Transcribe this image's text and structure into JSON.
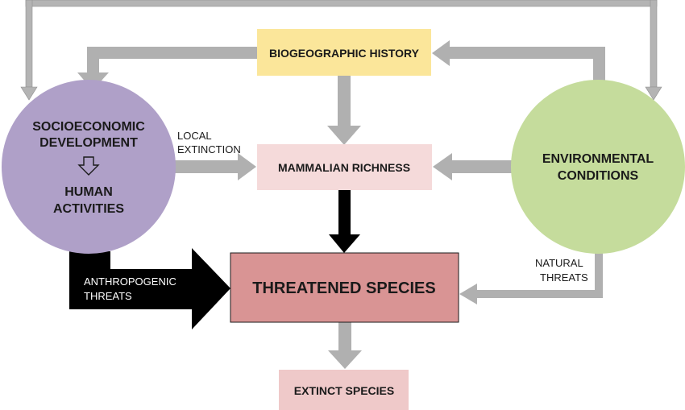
{
  "nodes": {
    "biogeographic": {
      "label": "BIOGEOGRAPHIC HISTORY",
      "color": "#FBE69A"
    },
    "mammalian": {
      "label": "MAMMALIAN RICHNESS",
      "color": "#F5DADA"
    },
    "threatened": {
      "label": "THREATENED SPECIES",
      "color": "#D99494"
    },
    "extinct": {
      "label": "EXTINCT SPECIES",
      "color": "#EFC9C9"
    },
    "socio": {
      "line1": "SOCIOECONOMIC",
      "line2": "DEVELOPMENT",
      "line3": "HUMAN",
      "line4": "ACTIVITIES",
      "color": "#AFA0C8"
    },
    "environmental": {
      "line1": "ENVIRONMENTAL",
      "line2": "CONDITIONS",
      "color": "#C5DC9C"
    }
  },
  "labels": {
    "local_extinction_1": "LOCAL",
    "local_extinction_2": "EXTINCTION",
    "anthropogenic_1": "ANTHROPOGENIC",
    "anthropogenic_2": "THREATS",
    "natural_1": "NATURAL",
    "natural_2": "THREATS"
  },
  "colors": {
    "gray_arrow": "#B0B0B0",
    "black_arrow": "#000000",
    "outline": "#A8A8A8"
  }
}
